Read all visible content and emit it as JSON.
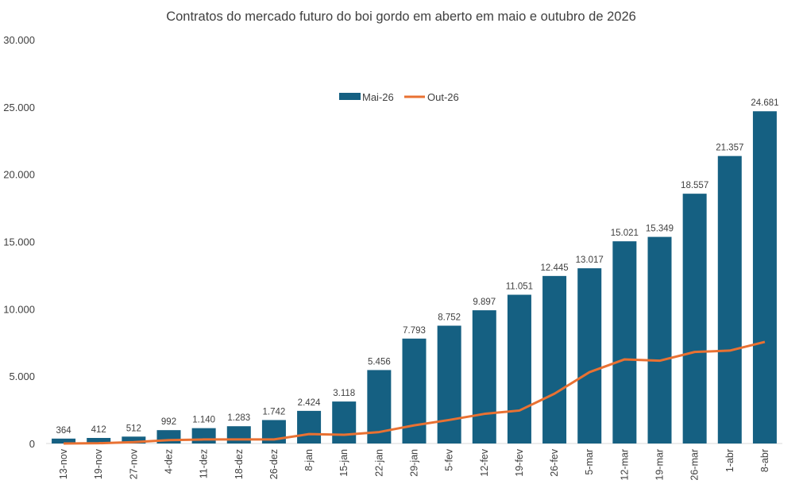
{
  "chart_data": {
    "type": "bar+line",
    "title": "Contratos do mercado futuro do boi gordo em aberto em maio  e outubro de 2026",
    "categories": [
      "13-nov",
      "19-nov",
      "27-nov",
      "4-dez",
      "11-dez",
      "18-dez",
      "26-dez",
      "8-jan",
      "15-jan",
      "22-jan",
      "29-jan",
      "5-fev",
      "12-fev",
      "19-fev",
      "26-fev",
      "5-mar",
      "12-mar",
      "19-mar",
      "26-mar",
      "1-abr",
      "8-abr"
    ],
    "series": [
      {
        "name": "Mai-26",
        "type": "bar",
        "color": "#156082",
        "values": [
          364,
          412,
          512,
          992,
          1140,
          1283,
          1742,
          2424,
          3118,
          5456,
          7793,
          8752,
          9897,
          11051,
          12445,
          13017,
          15021,
          15349,
          18557,
          21357,
          24681
        ],
        "labels": [
          "364",
          "412",
          "512",
          "992",
          "1.140",
          "1.283",
          "1.742",
          "2.424",
          "3.118",
          "5.456",
          "7.793",
          "8.752",
          "9.897",
          "11.051",
          "12.445",
          "13.017",
          "15.021",
          "15.349",
          "18.557",
          "21.357",
          "24.681"
        ]
      },
      {
        "name": "Out-26",
        "type": "line",
        "color": "#E97132",
        "values": [
          0,
          20,
          100,
          250,
          300,
          300,
          300,
          700,
          650,
          850,
          1350,
          1750,
          2200,
          2450,
          3700,
          5300,
          6250,
          6150,
          6800,
          6900,
          7550
        ]
      }
    ],
    "ylim": [
      0,
      30000
    ],
    "yticks": [
      "0",
      "5.000",
      "10.000",
      "15.000",
      "20.000",
      "25.000",
      "30.000"
    ],
    "ytick_values": [
      0,
      5000,
      10000,
      15000,
      20000,
      25000,
      30000
    ],
    "grid": false,
    "legend": "top-center"
  }
}
